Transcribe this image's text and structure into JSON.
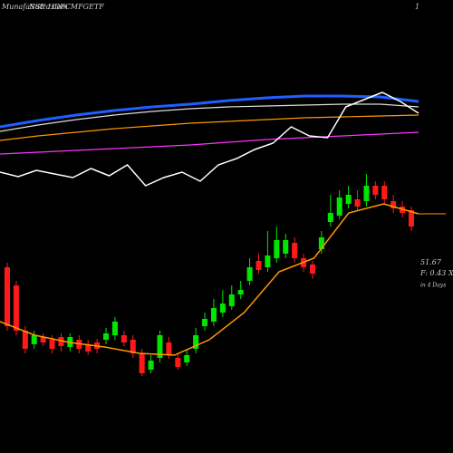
{
  "chart_data": {
    "type": "candlestick",
    "title": "MunafaSutra.com",
    "subtitle": "NSE HDFCMFGETF",
    "corner_label": "1",
    "annotations": [
      "51.67",
      "F: 0.43 X",
      "in 4 Days"
    ],
    "ylim": [
      0,
      500
    ],
    "up_color": "#00e600",
    "down_color": "#ff1a1a",
    "open": [
      205,
      185,
      135,
      120,
      128,
      125,
      128,
      117,
      125,
      120,
      122,
      125,
      130,
      130,
      125,
      110,
      92,
      105,
      122,
      105,
      100,
      115,
      140,
      145,
      155,
      162,
      175,
      190,
      212,
      205,
      215,
      220,
      232,
      215,
      208,
      225,
      255,
      262,
      275,
      280,
      278,
      295,
      295,
      278,
      272,
      268
    ],
    "high": [
      210,
      190,
      140,
      135,
      132,
      130,
      132,
      132,
      130,
      125,
      126,
      138,
      150,
      135,
      130,
      115,
      108,
      135,
      128,
      110,
      115,
      138,
      155,
      170,
      180,
      185,
      190,
      215,
      220,
      245,
      250,
      242,
      238,
      220,
      212,
      245,
      285,
      290,
      295,
      290,
      308,
      300,
      300,
      285,
      278,
      272
    ],
    "low": [
      135,
      130,
      110,
      115,
      118,
      110,
      112,
      112,
      110,
      108,
      110,
      120,
      125,
      118,
      105,
      85,
      88,
      100,
      104,
      92,
      96,
      110,
      135,
      140,
      150,
      158,
      170,
      185,
      198,
      200,
      210,
      215,
      210,
      200,
      192,
      220,
      250,
      258,
      270,
      268,
      272,
      280,
      275,
      265,
      260,
      245
    ],
    "close": [
      140,
      135,
      115,
      130,
      122,
      115,
      118,
      128,
      115,
      112,
      115,
      132,
      145,
      122,
      110,
      88,
      102,
      130,
      108,
      95,
      108,
      130,
      148,
      160,
      165,
      175,
      180,
      205,
      202,
      218,
      235,
      235,
      215,
      205,
      198,
      238,
      265,
      282,
      285,
      272,
      295,
      285,
      280,
      270,
      265,
      250
    ],
    "price_average": {
      "color": "#ff9900",
      "values": [
        145,
        130,
        122,
        117,
        110,
        108,
        125,
        155,
        200,
        215,
        265,
        275,
        264
      ]
    },
    "indicators": [
      {
        "color": "#1f5fff",
        "values": [
          360,
          367,
          373,
          378,
          382,
          385,
          389,
          392,
          394,
          394,
          393,
          388
        ]
      },
      {
        "color": "#dddddd",
        "values": [
          355,
          362,
          368,
          373,
          377,
          380,
          382,
          383,
          384,
          385,
          385,
          382
        ]
      },
      {
        "color": "#ff9900",
        "values": [
          345,
          350,
          354,
          358,
          361,
          364,
          366,
          368,
          370,
          371,
          372,
          373
        ]
      },
      {
        "color": "#ff33ff",
        "values": [
          330,
          332,
          334,
          336,
          338,
          340,
          343,
          346,
          348,
          350,
          352,
          354
        ]
      },
      {
        "color": "#ffffff",
        "values": [
          310,
          305,
          312,
          308,
          304,
          314,
          306,
          318,
          295,
          304,
          310,
          300,
          318,
          325,
          335,
          342,
          360,
          350,
          348,
          382,
          390,
          398,
          388,
          375
        ]
      }
    ]
  }
}
